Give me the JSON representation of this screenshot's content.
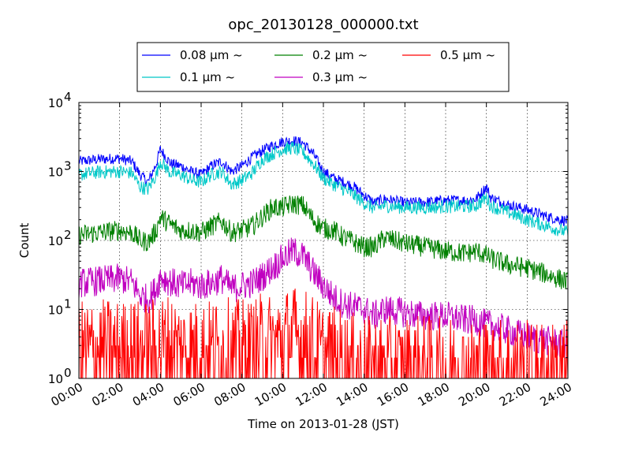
{
  "chart_data": {
    "type": "line",
    "title": "opc_20130128_000000.txt",
    "xlabel": "Time on 2013-01-28 (JST)",
    "ylabel": "Count",
    "yscale": "log",
    "xlim": [
      "00:00",
      "24:00"
    ],
    "ylim": [
      1,
      10000
    ],
    "grid": true,
    "legend_position": "top-center",
    "x_ticks": [
      "00:00",
      "02:00",
      "04:00",
      "06:00",
      "08:00",
      "10:00",
      "12:00",
      "14:00",
      "16:00",
      "18:00",
      "20:00",
      "22:00",
      "24:00"
    ],
    "y_ticks": [
      {
        "base": "10",
        "exp": "0",
        "value": 1
      },
      {
        "base": "10",
        "exp": "1",
        "value": 10
      },
      {
        "base": "10",
        "exp": "2",
        "value": 100
      },
      {
        "base": "10",
        "exp": "3",
        "value": 1000
      },
      {
        "base": "10",
        "exp": "4",
        "value": 10000
      }
    ],
    "x_hours": [
      0,
      1,
      2,
      2.6,
      3,
      3.4,
      3.8,
      4,
      4.5,
      5,
      5.5,
      6,
      6.5,
      7,
      7.5,
      8,
      8.5,
      9,
      9.5,
      10,
      10.5,
      11,
      11.5,
      12,
      12.5,
      13,
      13.5,
      14,
      14.5,
      15,
      16,
      17,
      18,
      19,
      19.5,
      20,
      20.2,
      21,
      22,
      23,
      24
    ],
    "series": [
      {
        "name": "0.08 μm ~",
        "color": "#0000ff",
        "noise": 0.08,
        "values": [
          1400,
          1500,
          1550,
          1400,
          900,
          700,
          1300,
          2100,
          1300,
          1200,
          1000,
          900,
          1200,
          1400,
          1000,
          1200,
          1600,
          2000,
          2400,
          2700,
          2800,
          2600,
          1800,
          1000,
          800,
          700,
          600,
          450,
          350,
          400,
          350,
          360,
          380,
          380,
          400,
          600,
          420,
          330,
          280,
          220,
          190
        ]
      },
      {
        "name": "0.1 μm ~",
        "color": "#00c8c8",
        "noise": 0.1,
        "values": [
          900,
          980,
          1000,
          950,
          600,
          550,
          900,
          1400,
          950,
          900,
          750,
          700,
          900,
          1000,
          650,
          750,
          950,
          1500,
          1800,
          2100,
          2200,
          1900,
          1300,
          800,
          650,
          550,
          450,
          350,
          290,
          320,
          300,
          300,
          310,
          310,
          320,
          420,
          320,
          260,
          200,
          160,
          130
        ]
      },
      {
        "name": "0.2 μm ~",
        "color": "#008000",
        "noise": 0.15,
        "values": [
          120,
          130,
          140,
          130,
          100,
          95,
          140,
          220,
          170,
          140,
          140,
          130,
          160,
          190,
          130,
          140,
          160,
          220,
          300,
          300,
          340,
          320,
          200,
          150,
          140,
          110,
          95,
          80,
          80,
          110,
          90,
          80,
          70,
          65,
          70,
          60,
          55,
          45,
          40,
          32,
          25
        ]
      },
      {
        "name": "0.3 μm ~",
        "color": "#c000c0",
        "noise": 0.22,
        "values": [
          24,
          26,
          28,
          25,
          16,
          14,
          20,
          30,
          25,
          22,
          24,
          22,
          24,
          28,
          20,
          22,
          24,
          30,
          40,
          55,
          70,
          60,
          35,
          22,
          15,
          12,
          11,
          10,
          8,
          10,
          9,
          8,
          8,
          7,
          7,
          6,
          6,
          5,
          4,
          3.5,
          3
        ]
      },
      {
        "name": "0.5 μm ~",
        "color": "#ff0000",
        "noise": 0.35,
        "values": [
          2.5,
          2.5,
          2.5,
          2.5,
          2.5,
          2.5,
          2.5,
          3,
          3,
          2.5,
          2.5,
          2.5,
          2.5,
          2.5,
          2.5,
          2.5,
          2.5,
          3,
          3,
          3.5,
          4,
          3.5,
          3,
          2,
          2,
          1.8,
          1.6,
          1.5,
          1.4,
          1.4,
          1.4,
          1.4,
          1.4,
          1.3,
          1.3,
          1.3,
          1.3,
          1.3,
          1.2,
          1.2,
          1.2
        ]
      }
    ]
  }
}
